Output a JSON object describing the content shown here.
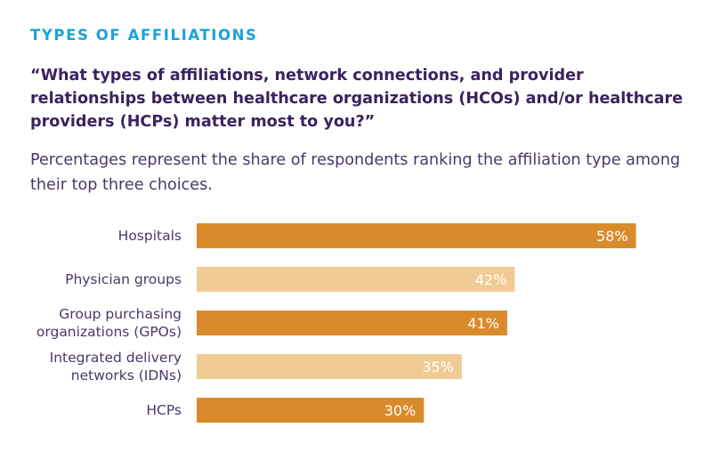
{
  "header": {
    "kicker": "TYPES OF AFFILIATIONS",
    "question": "“What types of affiliations, network connections, and provider relationships between healthcare organizations (HCOs) and/or healthcare providers (HCPs) matter most to you?”",
    "subtitle": "Percentages represent the share of respondents ranking the affiliation type among their top three choices."
  },
  "colors": {
    "kicker": "#1aa3d9",
    "question": "#3a2360",
    "bar_dark": "#d98b2b",
    "bar_light": "#f0cc94",
    "label": "#4a3868"
  },
  "chart_data": {
    "type": "bar",
    "orientation": "horizontal",
    "categories": [
      [
        "Hospitals"
      ],
      [
        "Physician groups"
      ],
      [
        "Group purchasing",
        "organizations (GPOs)"
      ],
      [
        "Integrated delivery",
        "networks (IDNs)"
      ],
      [
        "HCPs"
      ]
    ],
    "values": [
      58,
      42,
      41,
      35,
      30
    ],
    "value_labels": [
      "58%",
      "42%",
      "41%",
      "35%",
      "30%"
    ],
    "bar_shades": [
      "dark",
      "light",
      "dark",
      "light",
      "dark"
    ],
    "xlim": [
      0,
      100
    ],
    "grid": false,
    "legend": "none"
  }
}
